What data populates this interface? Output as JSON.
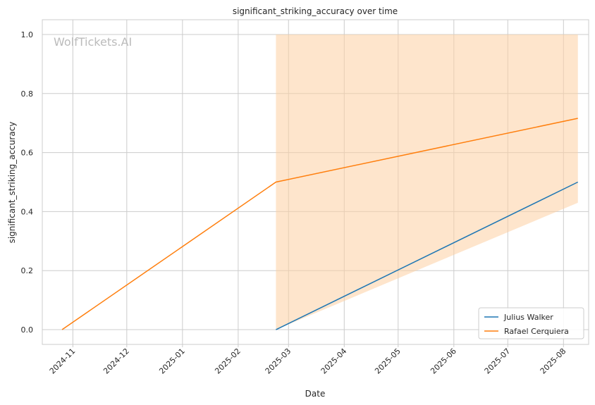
{
  "chart_data": {
    "type": "line",
    "title": "significant_striking_accuracy over time",
    "xlabel": "Date",
    "ylabel": "significant_striking_accuracy",
    "watermark": "WolfTickets.AI",
    "x_type": "date",
    "xlim": [
      "2024-10-15",
      "2025-08-15"
    ],
    "ylim": [
      -0.05,
      1.05
    ],
    "x_ticks": [
      "2024-11-01",
      "2024-12-01",
      "2025-01-01",
      "2025-02-01",
      "2025-03-01",
      "2025-04-01",
      "2025-05-01",
      "2025-06-01",
      "2025-07-01",
      "2025-08-01"
    ],
    "x_tick_labels": [
      "2024-11",
      "2024-12",
      "2025-01",
      "2025-02",
      "2025-03",
      "2025-04",
      "2025-05",
      "2025-06",
      "2025-07",
      "2025-08"
    ],
    "y_ticks": [
      0.0,
      0.2,
      0.4,
      0.6,
      0.8,
      1.0
    ],
    "y_tick_labels": [
      "0.0",
      "0.2",
      "0.4",
      "0.6",
      "0.8",
      "1.0"
    ],
    "grid": true,
    "legend_position": "bottom-right",
    "series": [
      {
        "name": "Julius Walker",
        "color": "#1f77b4",
        "points": [
          {
            "x": "2025-02-22",
            "y": 0.0
          },
          {
            "x": "2025-08-09",
            "y": 0.5
          }
        ]
      },
      {
        "name": "Rafael Cerquiera",
        "color": "#ff7f0e",
        "points": [
          {
            "x": "2024-10-26",
            "y": 0.0
          },
          {
            "x": "2025-02-22",
            "y": 0.5
          },
          {
            "x": "2025-08-09",
            "y": 0.716
          }
        ],
        "band": [
          {
            "x": "2025-02-22",
            "low": 0.0,
            "high": 1.0
          },
          {
            "x": "2025-08-09",
            "low": 0.43,
            "high": 1.0
          }
        ],
        "band_color": "#fdd0a2"
      }
    ]
  }
}
